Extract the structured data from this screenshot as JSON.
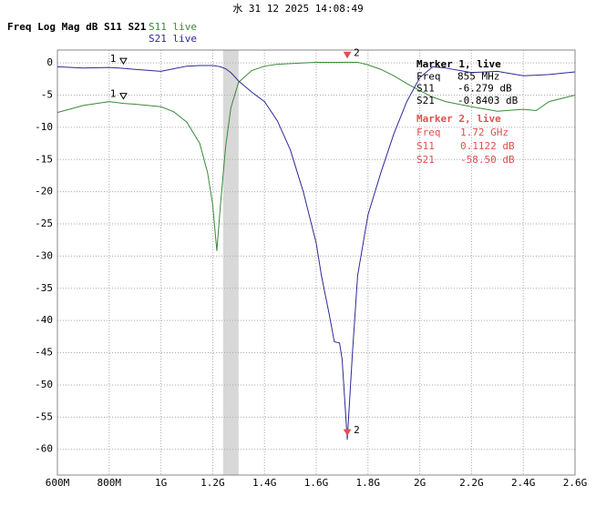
{
  "chart_data": {
    "type": "line",
    "timestamp": "水 31 12 2025 14:08:49",
    "title": "Freq Log Mag dB S11 S21",
    "x": [
      600,
      700,
      800,
      855,
      900,
      1000,
      1050,
      1100,
      1150,
      1180,
      1200,
      1216,
      1230,
      1250,
      1270,
      1300,
      1350,
      1400,
      1450,
      1500,
      1550,
      1600,
      1620,
      1650,
      1670,
      1690,
      1700,
      1720,
      1740,
      1760,
      1800,
      1850,
      1900,
      1950,
      2000,
      2050,
      2100,
      2200,
      2300,
      2400,
      2450,
      2500,
      2600
    ],
    "series": [
      {
        "name": "S11 live",
        "color": "#3a8a3a",
        "values": [
          -7.7,
          -6.6,
          -6.0,
          -6.279,
          -6.4,
          -6.8,
          -7.6,
          -9.2,
          -12.5,
          -17,
          -22,
          -29.2,
          -22,
          -13,
          -7,
          -3,
          -1.2,
          -0.5,
          -0.2,
          -0.1,
          0.0,
          0.1,
          0.1,
          0.1,
          0.1,
          0.1,
          0.1,
          0.1122,
          0.1,
          0.1,
          -0.3,
          -1.0,
          -2.0,
          -3.2,
          -4.3,
          -5.3,
          -6.0,
          -6.8,
          -7.5,
          -7.2,
          -7.4,
          -6.0,
          -5.0
        ]
      },
      {
        "name": "S21 live",
        "color": "#2a2a9a",
        "values": [
          -0.6,
          -0.8,
          -0.7,
          -0.8403,
          -1.0,
          -1.3,
          -0.9,
          -0.5,
          -0.4,
          -0.4,
          -0.4,
          -0.5,
          -0.6,
          -0.9,
          -1.5,
          -2.8,
          -4.5,
          -6.0,
          -9.0,
          -13.5,
          -20.0,
          -28.0,
          -33.0,
          -39.0,
          -43.3,
          -43.5,
          -46.0,
          -58.5,
          -45.0,
          -33.0,
          -23.6,
          -17.0,
          -11.0,
          -6.0,
          -2.3,
          -0.6,
          -0.8,
          -1.5,
          -1.3,
          -2.0,
          -1.9,
          -1.8,
          -1.4
        ]
      }
    ],
    "xlim": [
      600,
      2600
    ],
    "xticks": [
      {
        "value": 600,
        "label": "600M"
      },
      {
        "value": 800,
        "label": "800M"
      },
      {
        "value": 1000,
        "label": "1G"
      },
      {
        "value": 1200,
        "label": "1.2G"
      },
      {
        "value": 1400,
        "label": "1.4G"
      },
      {
        "value": 1600,
        "label": "1.6G"
      },
      {
        "value": 1800,
        "label": "1.8G"
      },
      {
        "value": 2000,
        "label": "2G"
      },
      {
        "value": 2200,
        "label": "2.2G"
      },
      {
        "value": 2400,
        "label": "2.4G"
      },
      {
        "value": 2600,
        "label": "2.6G"
      }
    ],
    "ylim": [
      -64,
      2
    ],
    "yticks": [
      0,
      -5,
      -10,
      -15,
      -20,
      -25,
      -30,
      -35,
      -40,
      -45,
      -50,
      -55,
      -60
    ],
    "grid": true,
    "shaded_band": [
      1240,
      1300
    ],
    "markers": [
      {
        "label": "1",
        "x": 855,
        "s11": -6.279,
        "s21": -0.8403,
        "color": "#000000",
        "title": "Marker 1, live",
        "rows": [
          [
            "Freq",
            "855 MHz"
          ],
          [
            "S11",
            "-6.279 dB"
          ],
          [
            "S21",
            "-0.8403 dB"
          ]
        ]
      },
      {
        "label": "2",
        "x": 1720,
        "s11": 0.1122,
        "s21": -58.5,
        "color": "#e05050",
        "title": "Marker 2, live",
        "rows": [
          [
            "Freq",
            "1.72 GHz"
          ],
          [
            "S11",
            "0.1122 dB"
          ],
          [
            "S21",
            "-58.50 dB"
          ]
        ]
      }
    ]
  }
}
